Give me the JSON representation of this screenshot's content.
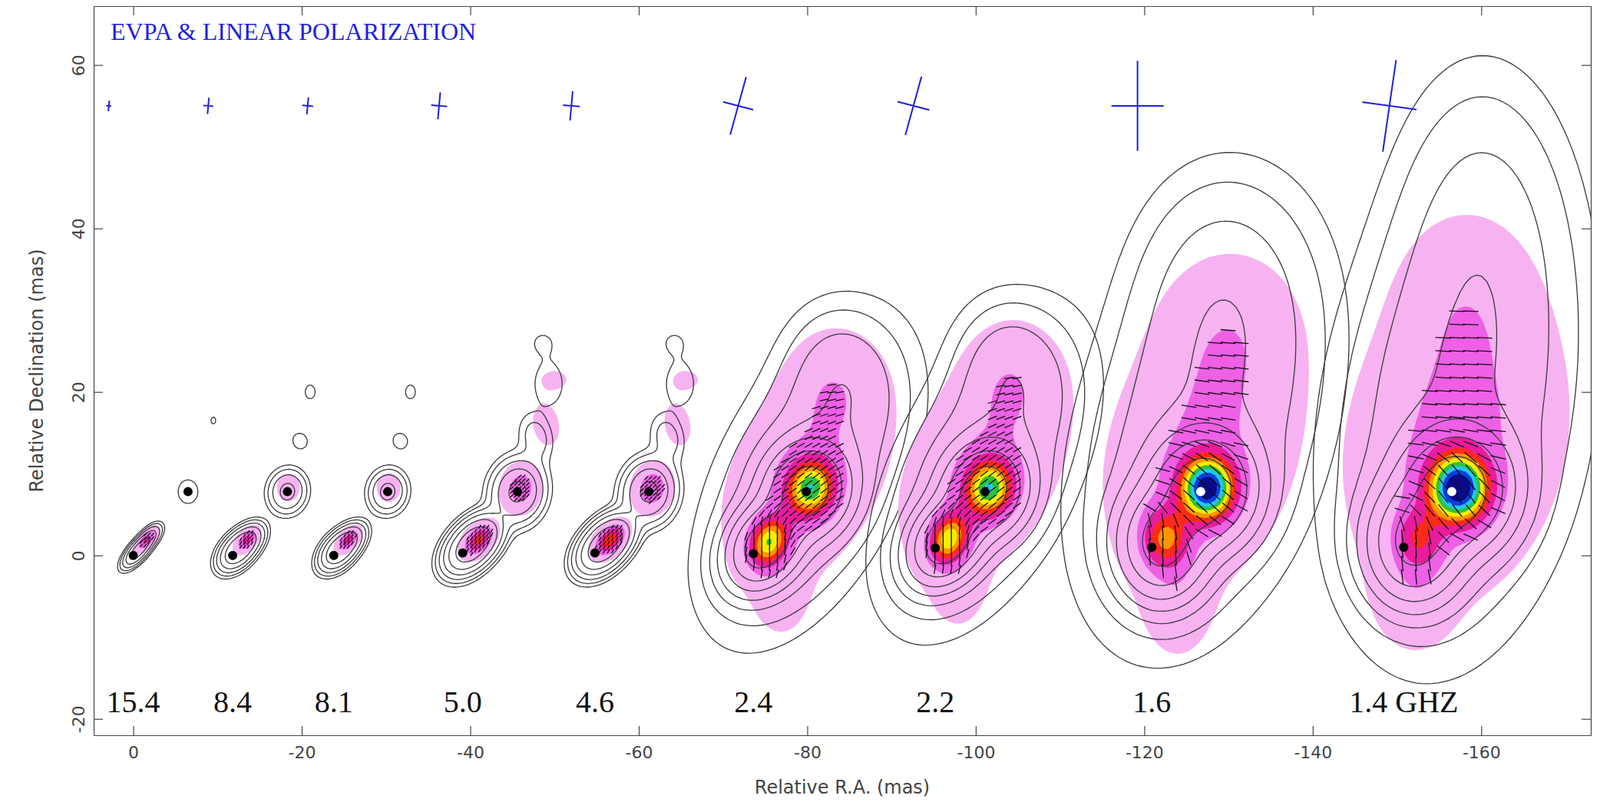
{
  "chart_data": {
    "type": "polarization_map",
    "title": "EVPA & LINEAR POLARIZATION",
    "xlabel": "Relative R.A. (mas)",
    "ylabel": "Relative Declination (mas)",
    "xlim": [
      4.7,
      -173
    ],
    "ylim": [
      -22,
      67.2
    ],
    "xticks": [
      0,
      -20,
      -40,
      -60,
      -80,
      -100,
      -120,
      -140,
      -160
    ],
    "yticks": [
      -20,
      0,
      20,
      40,
      60
    ],
    "pol_levels": [
      0.05,
      0.18,
      0.3,
      0.42,
      0.52,
      0.62,
      0.72,
      0.82,
      0.92,
      1.02
    ],
    "pol_colors": [
      "#f7b2f2",
      "#ee60e6",
      "#e81c9c",
      "#ff2a1a",
      "#ff9600",
      "#f5ee00",
      "#2cc33c",
      "#22c7ee",
      "#0b3fe0",
      "#0a0a8a"
    ],
    "panels": [
      {
        "label": "15.4",
        "core": {
          "x": 0,
          "y": 0
        },
        "knot": {
          "x": -6.5,
          "y": 7.8
        },
        "beam": {
          "x": 2.9,
          "y": 55,
          "major": 1.3,
          "minor": 0.6,
          "pa": -5
        },
        "i_levels": [
          0.04,
          0.08,
          0.16,
          0.32,
          0.64
        ],
        "i_components": [
          {
            "x": -0.6,
            "y": 0.6,
            "major": 3.2,
            "minor": 1.3,
            "pa": -40,
            "peak": 1.0
          },
          {
            "x": -2.0,
            "y": 2.3,
            "major": 2.5,
            "minor": 1.3,
            "pa": -40,
            "peak": 0.35
          },
          {
            "x": -6.5,
            "y": 7.8,
            "major": 3.2,
            "minor": 2.6,
            "pa": 0,
            "peak": 0.07
          },
          {
            "x": -9.5,
            "y": 16.5,
            "major": 1.5,
            "minor": 1.0,
            "pa": 0,
            "peak": 0.05
          }
        ],
        "p_components": [
          {
            "x": -1.6,
            "y": 1.9,
            "major": 2.6,
            "minor": 1.3,
            "pa": -40,
            "peak": 0.34,
            "evpa": -40
          }
        ]
      },
      {
        "label": "8.4",
        "core": {
          "x": -11.8,
          "y": 0
        },
        "knot": {
          "x": -18.3,
          "y": 7.8
        },
        "beam": {
          "x": -8.9,
          "y": 55,
          "major": 2.0,
          "minor": 1.2,
          "pa": -5
        },
        "i_levels": [
          0.03,
          0.06,
          0.12,
          0.24,
          0.48
        ],
        "i_components": [
          {
            "x": -12.4,
            "y": 0.6,
            "major": 3.6,
            "minor": 2.2,
            "pa": -40,
            "peak": 1.0
          },
          {
            "x": -13.8,
            "y": 2.0,
            "major": 3.0,
            "minor": 2.0,
            "pa": -40,
            "peak": 0.4
          },
          {
            "x": -18.3,
            "y": 7.8,
            "major": 3.6,
            "minor": 3.0,
            "pa": -10,
            "peak": 0.3
          },
          {
            "x": -19.8,
            "y": 14,
            "major": 2.5,
            "minor": 2.2,
            "pa": 20,
            "peak": 0.045
          },
          {
            "x": -21,
            "y": 20,
            "major": 2.6,
            "minor": 1.8,
            "pa": 0,
            "peak": 0.04
          }
        ],
        "p_components": [
          {
            "x": -13.5,
            "y": 1.9,
            "major": 2.6,
            "minor": 1.5,
            "pa": -40,
            "peak": 0.36,
            "evpa": -30
          },
          {
            "x": -18.4,
            "y": 8.3,
            "major": 3.0,
            "minor": 2.4,
            "pa": 0,
            "peak": 0.12,
            "evpa": -40
          }
        ]
      },
      {
        "label": "8.1",
        "core": {
          "x": -23.8,
          "y": 0
        },
        "knot": {
          "x": -30.2,
          "y": 7.8
        },
        "beam": {
          "x": -20.7,
          "y": 55,
          "major": 2.1,
          "minor": 1.3,
          "pa": -5
        },
        "i_levels": [
          0.03,
          0.06,
          0.12,
          0.24,
          0.48
        ],
        "i_components": [
          {
            "x": -24.4,
            "y": 0.6,
            "major": 3.6,
            "minor": 2.2,
            "pa": -40,
            "peak": 1.0
          },
          {
            "x": -25.8,
            "y": 2.0,
            "major": 3.0,
            "minor": 2.0,
            "pa": -40,
            "peak": 0.4
          },
          {
            "x": -30.2,
            "y": 7.8,
            "major": 3.6,
            "minor": 3.0,
            "pa": -10,
            "peak": 0.3
          },
          {
            "x": -31.7,
            "y": 14,
            "major": 2.5,
            "minor": 2.2,
            "pa": 20,
            "peak": 0.045
          },
          {
            "x": -32.9,
            "y": 20,
            "major": 2.6,
            "minor": 1.8,
            "pa": 0,
            "peak": 0.04
          }
        ],
        "p_components": [
          {
            "x": -25.5,
            "y": 1.9,
            "major": 2.6,
            "minor": 1.5,
            "pa": -40,
            "peak": 0.38,
            "evpa": -30
          },
          {
            "x": -30.3,
            "y": 8.3,
            "major": 3.0,
            "minor": 2.4,
            "pa": 0,
            "peak": 0.13,
            "evpa": -40
          }
        ]
      },
      {
        "label": "5.0",
        "core": {
          "x": -39.1,
          "y": 0.3
        },
        "knot": {
          "x": -45.6,
          "y": 7.8
        },
        "beam": {
          "x": -36.3,
          "y": 55,
          "major": 3.3,
          "minor": 1.9,
          "pa": -5
        },
        "i_levels": [
          0.02,
          0.04,
          0.08,
          0.16,
          0.32,
          0.64
        ],
        "i_components": [
          {
            "x": -39.9,
            "y": 0.9,
            "major": 4.6,
            "minor": 3.0,
            "pa": -40,
            "peak": 1.0
          },
          {
            "x": -41.3,
            "y": 2.4,
            "major": 4.0,
            "minor": 3.0,
            "pa": -40,
            "peak": 0.45
          },
          {
            "x": -45.6,
            "y": 7.8,
            "major": 5.0,
            "minor": 4.0,
            "pa": -10,
            "peak": 0.38
          },
          {
            "x": -47.8,
            "y": 14.5,
            "major": 4.5,
            "minor": 3.0,
            "pa": 15,
            "peak": 0.06
          },
          {
            "x": -49.3,
            "y": 21,
            "major": 5.0,
            "minor": 3.2,
            "pa": 0,
            "peak": 0.04
          },
          {
            "x": -48.6,
            "y": 26,
            "major": 3.0,
            "minor": 3.0,
            "pa": 0,
            "peak": 0.025
          }
        ],
        "p_components": [
          {
            "x": -41,
            "y": 1.9,
            "major": 3.5,
            "minor": 2.2,
            "pa": -40,
            "peak": 0.46,
            "evpa": -30
          },
          {
            "x": -46,
            "y": 8.2,
            "major": 4.4,
            "minor": 3.4,
            "pa": -10,
            "peak": 0.26,
            "evpa": -45
          },
          {
            "x": -49,
            "y": 16,
            "major": 5.0,
            "minor": 3.0,
            "pa": 10,
            "peak": 0.1,
            "evpa": 30
          },
          {
            "x": -50,
            "y": 21.5,
            "major": 3.0,
            "minor": 4.0,
            "pa": 0,
            "peak": 0.07,
            "evpa": 20
          }
        ]
      },
      {
        "label": "4.6",
        "core": {
          "x": -54.8,
          "y": 0.3
        },
        "knot": {
          "x": -61.2,
          "y": 7.8
        },
        "beam": {
          "x": -52.0,
          "y": 55,
          "major": 3.6,
          "minor": 2.0,
          "pa": -5
        },
        "i_levels": [
          0.02,
          0.04,
          0.08,
          0.16,
          0.32,
          0.64
        ],
        "i_components": [
          {
            "x": -55.6,
            "y": 0.9,
            "major": 4.6,
            "minor": 3.0,
            "pa": -40,
            "peak": 1.0
          },
          {
            "x": -57.0,
            "y": 2.4,
            "major": 4.0,
            "minor": 3.0,
            "pa": -40,
            "peak": 0.45
          },
          {
            "x": -61.2,
            "y": 7.8,
            "major": 5.0,
            "minor": 4.0,
            "pa": -10,
            "peak": 0.38
          },
          {
            "x": -63.4,
            "y": 14.5,
            "major": 4.5,
            "minor": 3.0,
            "pa": 15,
            "peak": 0.06
          },
          {
            "x": -64.9,
            "y": 21,
            "major": 5.0,
            "minor": 3.2,
            "pa": 0,
            "peak": 0.04
          },
          {
            "x": -64.2,
            "y": 26,
            "major": 3.0,
            "minor": 3.0,
            "pa": 0,
            "peak": 0.025
          }
        ],
        "p_components": [
          {
            "x": -56.6,
            "y": 1.9,
            "major": 3.5,
            "minor": 2.2,
            "pa": -40,
            "peak": 0.52,
            "evpa": -30
          },
          {
            "x": -61.6,
            "y": 8.2,
            "major": 4.4,
            "minor": 3.4,
            "pa": -10,
            "peak": 0.28,
            "evpa": -45
          },
          {
            "x": -64.6,
            "y": 16,
            "major": 5.0,
            "minor": 3.0,
            "pa": 10,
            "peak": 0.1,
            "evpa": 30
          },
          {
            "x": -65.6,
            "y": 21.5,
            "major": 3.0,
            "minor": 4.0,
            "pa": 0,
            "peak": 0.07,
            "evpa": 20
          }
        ]
      },
      {
        "label": "2.4",
        "core": {
          "x": -73.6,
          "y": 0.2
        },
        "knot": {
          "x": -79.9,
          "y": 7.8
        },
        "beam": {
          "x": -71.8,
          "y": 55,
          "major": 7.3,
          "minor": 3.7,
          "pa": -15
        },
        "i_levels": [
          0.01,
          0.02,
          0.04,
          0.08,
          0.16,
          0.32,
          0.64
        ],
        "i_components": [
          {
            "x": -75,
            "y": 1.3,
            "major": 7,
            "minor": 5,
            "pa": -30,
            "peak": 1.0
          },
          {
            "x": -80,
            "y": 8,
            "major": 7,
            "minor": 6,
            "pa": -15,
            "peak": 0.9
          },
          {
            "x": -80,
            "y": 9,
            "major": 26,
            "minor": 13,
            "pa": -25,
            "peak": 0.08
          },
          {
            "x": -84,
            "y": 22,
            "major": 12,
            "minor": 9,
            "pa": 10,
            "peak": 0.04
          }
        ],
        "p_components": [
          {
            "x": -75.4,
            "y": 1.6,
            "major": 5,
            "minor": 3.5,
            "pa": -20,
            "peak": 0.62,
            "evpa": 5
          },
          {
            "x": -80.4,
            "y": 8.2,
            "major": 5.5,
            "minor": 4.5,
            "pa": -10,
            "peak": 0.66,
            "evpa": -50
          },
          {
            "x": -80,
            "y": 10,
            "major": 22,
            "minor": 13,
            "pa": -25,
            "peak": 0.18,
            "evpa": -60
          },
          {
            "x": -83,
            "y": 21,
            "major": 10,
            "minor": 8,
            "pa": 0,
            "peak": 0.1,
            "evpa": 80
          },
          {
            "x": -77,
            "y": -5,
            "major": 8,
            "minor": 5,
            "pa": 0,
            "peak": 0.08,
            "evpa": 0
          }
        ]
      },
      {
        "label": "2.2",
        "core": {
          "x": -95.2,
          "y": 0.9
        },
        "knot": {
          "x": -101.1,
          "y": 7.8
        },
        "beam": {
          "x": -92.6,
          "y": 55,
          "major": 7.4,
          "minor": 3.9,
          "pa": -15
        },
        "i_levels": [
          0.01,
          0.02,
          0.04,
          0.08,
          0.16,
          0.32,
          0.64
        ],
        "i_components": [
          {
            "x": -96.5,
            "y": 1.8,
            "major": 7,
            "minor": 5,
            "pa": -30,
            "peak": 1.0
          },
          {
            "x": -101.2,
            "y": 8,
            "major": 7,
            "minor": 6,
            "pa": -15,
            "peak": 0.9
          },
          {
            "x": -101,
            "y": 10,
            "major": 26,
            "minor": 13,
            "pa": -25,
            "peak": 0.08
          },
          {
            "x": -104,
            "y": 23,
            "major": 12,
            "minor": 9,
            "pa": 10,
            "peak": 0.04
          }
        ],
        "p_components": [
          {
            "x": -96.8,
            "y": 2,
            "major": 5,
            "minor": 3.5,
            "pa": -20,
            "peak": 0.6,
            "evpa": 5
          },
          {
            "x": -101.6,
            "y": 8.2,
            "major": 5.5,
            "minor": 4.5,
            "pa": -10,
            "peak": 0.68,
            "evpa": -50
          },
          {
            "x": -101,
            "y": 11,
            "major": 22,
            "minor": 13,
            "pa": -25,
            "peak": 0.18,
            "evpa": -60
          },
          {
            "x": -104,
            "y": 22,
            "major": 10,
            "minor": 8,
            "pa": 0,
            "peak": 0.1,
            "evpa": 80
          },
          {
            "x": -98,
            "y": -4,
            "major": 8,
            "minor": 5,
            "pa": 0,
            "peak": 0.08,
            "evpa": 0
          }
        ]
      },
      {
        "label": "1.6",
        "core": {
          "x": -120.9,
          "y": 1.0
        },
        "knot": {
          "x": -126.7,
          "y": 7.8
        },
        "beam": {
          "x": -119.2,
          "y": 55,
          "major": 11,
          "minor": 6.2,
          "pa": 0
        },
        "i_levels": [
          0.01,
          0.02,
          0.04,
          0.08,
          0.16,
          0.32,
          0.64
        ],
        "i_components": [
          {
            "x": -122,
            "y": 1.5,
            "major": 8.5,
            "minor": 6.5,
            "pa": 0,
            "peak": 0.8
          },
          {
            "x": -127,
            "y": 8,
            "major": 8.5,
            "minor": 7.5,
            "pa": -5,
            "peak": 1.0
          },
          {
            "x": -127,
            "y": 15,
            "major": 34,
            "minor": 18,
            "pa": -15,
            "peak": 0.08
          },
          {
            "x": -129,
            "y": 33,
            "major": 20,
            "minor": 14,
            "pa": 0,
            "peak": 0.04
          }
        ],
        "p_components": [
          {
            "x": -122.5,
            "y": 2,
            "major": 6,
            "minor": 4.5,
            "pa": 0,
            "peak": 0.45,
            "evpa": 0
          },
          {
            "x": -127.5,
            "y": 8.2,
            "major": 6,
            "minor": 5,
            "pa": 0,
            "peak": 0.98,
            "evpa": 40
          },
          {
            "x": -127,
            "y": 13,
            "major": 26,
            "minor": 16,
            "pa": -15,
            "peak": 0.2,
            "evpa": 80
          },
          {
            "x": -130,
            "y": 28,
            "major": 14,
            "minor": 12,
            "pa": 0,
            "peak": 0.1,
            "evpa": 90
          },
          {
            "x": -124,
            "y": -6,
            "major": 10,
            "minor": 6,
            "pa": 0,
            "peak": 0.1,
            "evpa": 0
          }
        ]
      },
      {
        "label": "1.4 GHZ",
        "core": {
          "x": -150.8,
          "y": 1.0
        },
        "knot": {
          "x": -156.5,
          "y": 7.8
        },
        "beam": {
          "x": -149.1,
          "y": 55,
          "major": 11.3,
          "minor": 6.5,
          "pa": -8
        },
        "i_levels": [
          0.01,
          0.02,
          0.04,
          0.08,
          0.16,
          0.32,
          0.64
        ],
        "i_components": [
          {
            "x": -152,
            "y": 1.5,
            "major": 9,
            "minor": 7,
            "pa": 0,
            "peak": 0.75
          },
          {
            "x": -157,
            "y": 8,
            "major": 9,
            "minor": 8,
            "pa": -5,
            "peak": 1.0
          },
          {
            "x": -157,
            "y": 17,
            "major": 38,
            "minor": 19,
            "pa": -8,
            "peak": 0.08
          },
          {
            "x": -160,
            "y": 40,
            "major": 28,
            "minor": 14,
            "pa": 0,
            "peak": 0.04
          }
        ],
        "p_components": [
          {
            "x": -152.5,
            "y": 2,
            "major": 6,
            "minor": 4.5,
            "pa": 0,
            "peak": 0.3,
            "evpa": 0
          },
          {
            "x": -157.3,
            "y": 8.2,
            "major": 6.5,
            "minor": 5.5,
            "pa": 0,
            "peak": 1.0,
            "evpa": 30
          },
          {
            "x": -157,
            "y": 14,
            "major": 28,
            "minor": 18,
            "pa": -10,
            "peak": 0.22,
            "evpa": 85
          },
          {
            "x": -158,
            "y": 32,
            "major": 16,
            "minor": 12,
            "pa": 0,
            "peak": 0.1,
            "evpa": 90
          },
          {
            "x": -152,
            "y": -5,
            "major": 10,
            "minor": 7,
            "pa": 0,
            "peak": 0.1,
            "evpa": 0
          }
        ]
      }
    ]
  }
}
